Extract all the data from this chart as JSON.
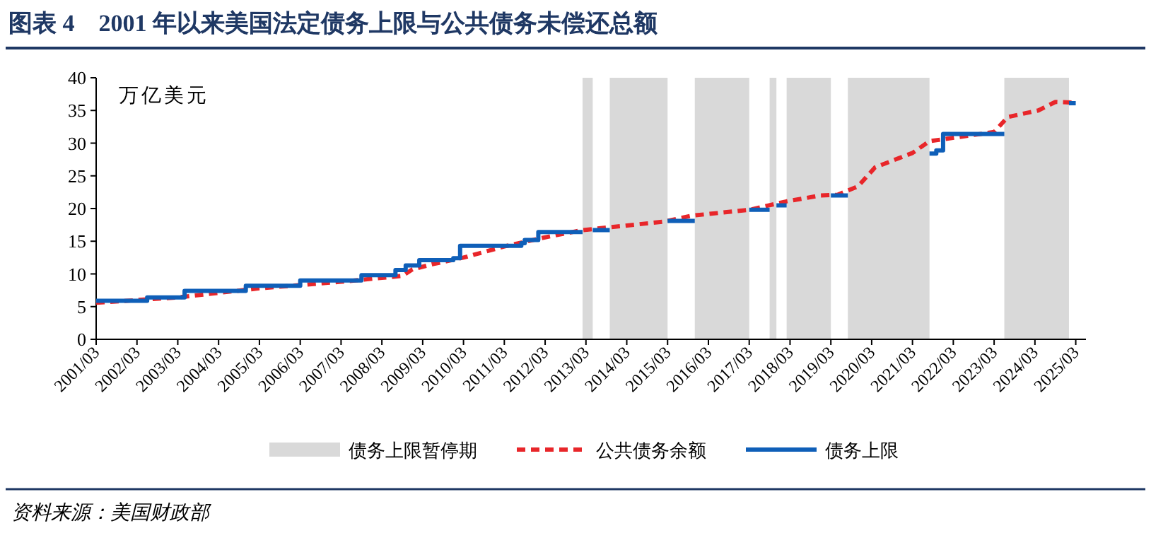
{
  "chart_data": {
    "type": "line",
    "title": "图表 4　2001 年以来美国法定债务上限与公共债务未偿还总额",
    "ylabel": "万亿美元",
    "annotations": [
      "资料来源：美国财政部"
    ],
    "legend": "bottom",
    "xlim": [
      "2001-03",
      "2025-06"
    ],
    "xticks": [
      {
        "value": "2001-03",
        "label": "2001/03"
      },
      {
        "value": "2002-03",
        "label": "2002/03"
      },
      {
        "value": "2003-03",
        "label": "2003/03"
      },
      {
        "value": "2004-03",
        "label": "2004/03"
      },
      {
        "value": "2005-03",
        "label": "2005/03"
      },
      {
        "value": "2006-03",
        "label": "2006/03"
      },
      {
        "value": "2007-03",
        "label": "2007/03"
      },
      {
        "value": "2008-03",
        "label": "2008/03"
      },
      {
        "value": "2009-03",
        "label": "2009/03"
      },
      {
        "value": "2010-03",
        "label": "2010/03"
      },
      {
        "value": "2011-03",
        "label": "2011/03"
      },
      {
        "value": "2012-03",
        "label": "2012/03"
      },
      {
        "value": "2013-03",
        "label": "2013/03"
      },
      {
        "value": "2014-03",
        "label": "2014/03"
      },
      {
        "value": "2015-03",
        "label": "2015/03"
      },
      {
        "value": "2016-03",
        "label": "2016/03"
      },
      {
        "value": "2017-03",
        "label": "2017/03"
      },
      {
        "value": "2018-03",
        "label": "2018/03"
      },
      {
        "value": "2019-03",
        "label": "2019/03"
      },
      {
        "value": "2020-03",
        "label": "2020/03"
      },
      {
        "value": "2021-03",
        "label": "2021/03"
      },
      {
        "value": "2022-03",
        "label": "2022/03"
      },
      {
        "value": "2023-03",
        "label": "2023/03"
      },
      {
        "value": "2024-03",
        "label": "2024/03"
      },
      {
        "value": "2025-03",
        "label": "2025/03"
      }
    ],
    "ylim": [
      0,
      40
    ],
    "yticks": [
      0,
      5,
      10,
      15,
      20,
      25,
      30,
      35,
      40
    ],
    "bands": [
      {
        "axis": "x",
        "from": "2013-02",
        "to": "2013-05",
        "label": "债务上限暂停期",
        "color": "#d9d9d9"
      },
      {
        "axis": "x",
        "from": "2013-10",
        "to": "2015-03",
        "color": "#d9d9d9"
      },
      {
        "axis": "x",
        "from": "2015-11",
        "to": "2017-03",
        "color": "#d9d9d9"
      },
      {
        "axis": "x",
        "from": "2017-09",
        "to": "2017-11",
        "color": "#d9d9d9"
      },
      {
        "axis": "x",
        "from": "2018-02",
        "to": "2019-03",
        "color": "#d9d9d9"
      },
      {
        "axis": "x",
        "from": "2019-08",
        "to": "2021-08",
        "color": "#d9d9d9"
      },
      {
        "axis": "x",
        "from": "2023-06",
        "to": "2025-01",
        "color": "#d9d9d9"
      }
    ],
    "series": [
      {
        "name": "公共债务余额",
        "type": "line",
        "line_style": "dashed",
        "color": "#e8262a",
        "x": [
          "2001-03",
          "2002-03",
          "2003-03",
          "2004-03",
          "2005-03",
          "2006-03",
          "2007-03",
          "2008-03",
          "2008-09",
          "2008-12",
          "2009-06",
          "2010-03",
          "2011-03",
          "2012-03",
          "2013-02",
          "2015-02",
          "2015-10",
          "2017-03",
          "2018-02",
          "2018-12",
          "2019-05",
          "2019-11",
          "2020-04",
          "2021-03",
          "2021-08",
          "2023-03",
          "2023-07",
          "2024-04",
          "2024-09",
          "2025-03"
        ],
        "values": [
          5.6,
          6.0,
          6.4,
          7.1,
          7.8,
          8.3,
          8.8,
          9.4,
          9.7,
          10.7,
          11.5,
          12.5,
          14.2,
          15.6,
          16.7,
          18.0,
          18.9,
          19.8,
          21.1,
          22.0,
          22.1,
          23.4,
          26.3,
          28.5,
          30.3,
          31.7,
          34.0,
          35.0,
          36.3,
          36.2
        ]
      },
      {
        "name": "债务上限",
        "type": "step",
        "line_style": "solid",
        "color": "#0f5fb8",
        "x": [
          "2001-03",
          "2002-06",
          "2003-05",
          "2004-11",
          "2006-03",
          "2007-09",
          "2008-07",
          "2008-10",
          "2009-02",
          "2009-12",
          "2010-02",
          "2011-08",
          "2011-09",
          "2012-01",
          "2013-02",
          "2013-05",
          "2013-10",
          "2015-03",
          "2015-11",
          "2017-03",
          "2017-09",
          "2017-11",
          "2018-02",
          "2019-03",
          "2019-08",
          "2021-08",
          "2021-10",
          "2021-12",
          "2023-06",
          "2025-01",
          "2025-03"
        ],
        "values": [
          5.9,
          6.4,
          7.4,
          8.2,
          9.0,
          9.8,
          10.6,
          11.3,
          12.1,
          12.4,
          14.3,
          14.7,
          15.2,
          16.4,
          null,
          16.7,
          null,
          18.1,
          null,
          19.8,
          null,
          20.5,
          null,
          22.0,
          null,
          28.4,
          28.9,
          31.4,
          null,
          36.1,
          36.1
        ]
      }
    ]
  }
}
